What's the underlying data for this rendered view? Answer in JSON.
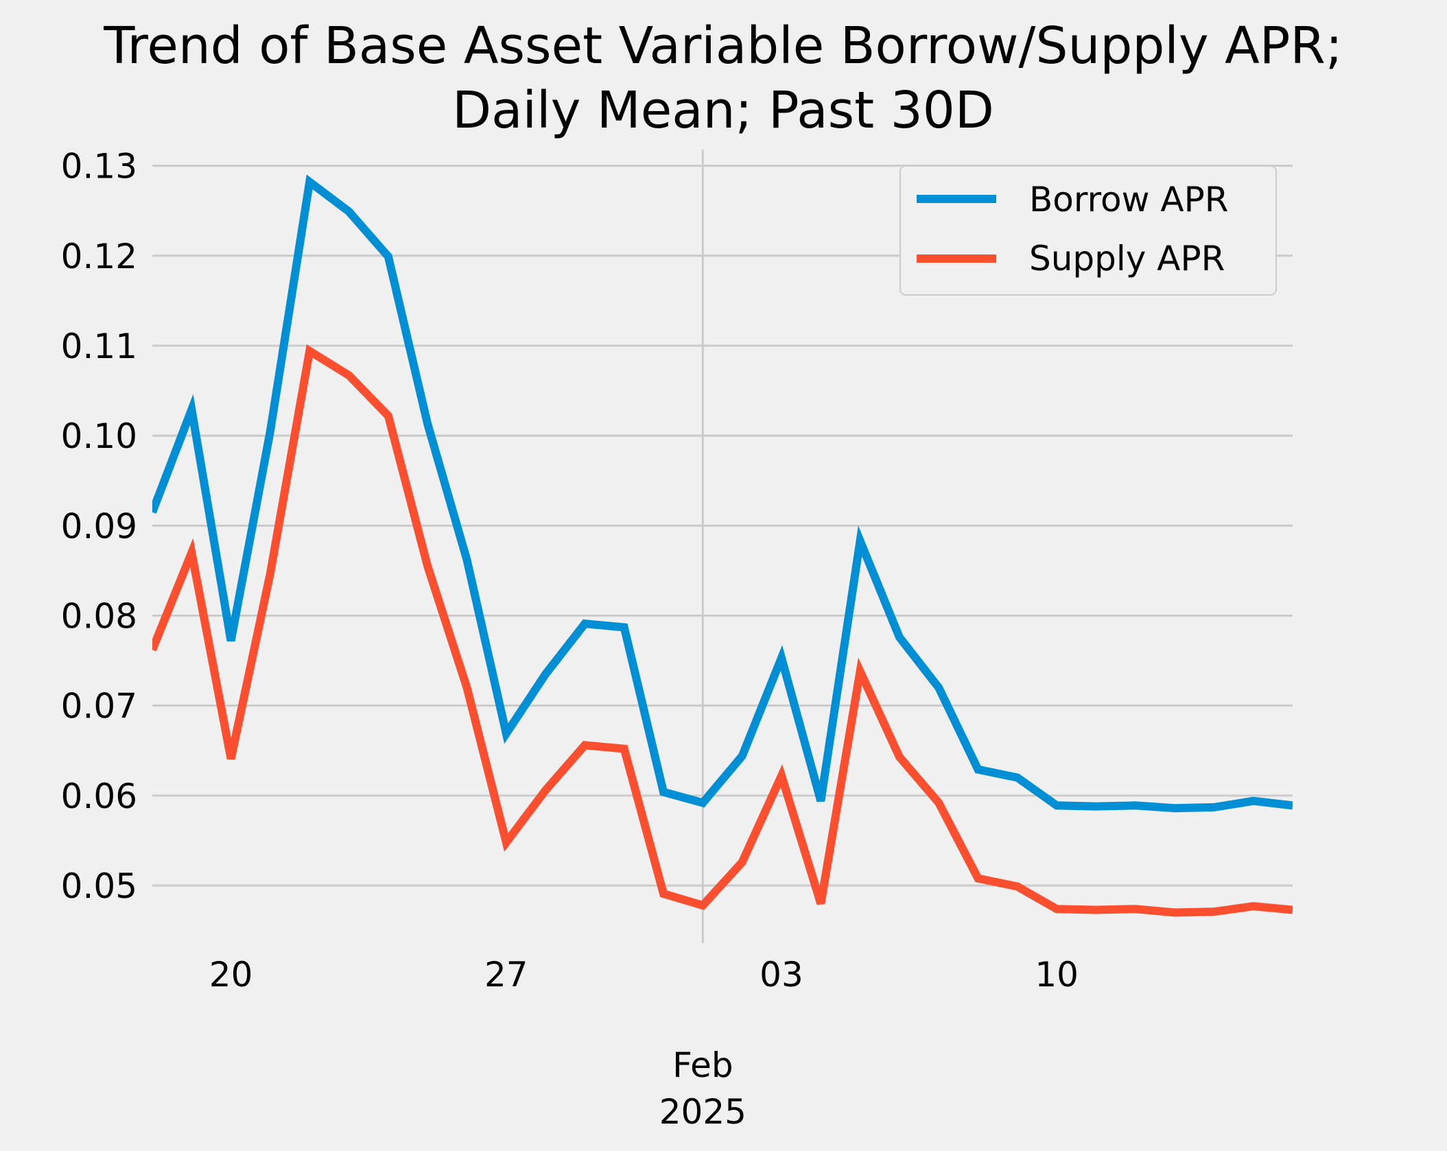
{
  "chart_data": {
    "type": "line",
    "title": [
      "Trend of Base Asset Variable Borrow/Supply APR;",
      "Daily Mean; Past 30D"
    ],
    "xlabel": "",
    "ylabel": "",
    "x": [
      "2025-01-18",
      "2025-01-19",
      "2025-01-20",
      "2025-01-21",
      "2025-01-22",
      "2025-01-23",
      "2025-01-24",
      "2025-01-25",
      "2025-01-26",
      "2025-01-27",
      "2025-01-28",
      "2025-01-29",
      "2025-01-30",
      "2025-01-31",
      "2025-02-01",
      "2025-02-02",
      "2025-02-03",
      "2025-02-04",
      "2025-02-05",
      "2025-02-06",
      "2025-02-07",
      "2025-02-08",
      "2025-02-09",
      "2025-02-10",
      "2025-02-11",
      "2025-02-12",
      "2025-02-13",
      "2025-02-14",
      "2025-02-15",
      "2025-02-16"
    ],
    "xlim": [
      "2025-01-18",
      "2025-02-16"
    ],
    "ylim": [
      0.0436,
      0.1318
    ],
    "x_ticks": [
      {
        "date": "2025-01-20",
        "label": "20"
      },
      {
        "date": "2025-01-27",
        "label": "27"
      },
      {
        "date": "2025-02-03",
        "label": "03"
      },
      {
        "date": "2025-02-10",
        "label": "10"
      }
    ],
    "x_month_label": {
      "date": "2025-02-01",
      "line1": "Feb",
      "line2": "2025"
    },
    "y_ticks": [
      "0.05",
      "0.06",
      "0.07",
      "0.08",
      "0.09",
      "0.10",
      "0.11",
      "0.12",
      "0.13"
    ],
    "grid": true,
    "legend_position": "top-right",
    "series": [
      {
        "name": "Borrow APR",
        "color": "#008fd5",
        "values": [
          0.0915,
          0.1029,
          0.0772,
          0.1005,
          0.1282,
          0.1249,
          0.1199,
          0.1013,
          0.0862,
          0.0669,
          0.0735,
          0.0791,
          0.0787,
          0.0604,
          0.0592,
          0.0644,
          0.0753,
          0.0594,
          0.0883,
          0.0776,
          0.072,
          0.0629,
          0.062,
          0.0589,
          0.0588,
          0.0589,
          0.0586,
          0.0587,
          0.0594,
          0.0589
        ]
      },
      {
        "name": "Supply APR",
        "color": "#fc4f30",
        "values": [
          0.0762,
          0.087,
          0.0641,
          0.0847,
          0.1094,
          0.1067,
          0.1022,
          0.0855,
          0.072,
          0.0548,
          0.0606,
          0.0656,
          0.0652,
          0.0491,
          0.0478,
          0.0526,
          0.0622,
          0.048,
          0.0738,
          0.0643,
          0.0592,
          0.0508,
          0.0499,
          0.0474,
          0.0473,
          0.0474,
          0.047,
          0.0471,
          0.0477,
          0.0473
        ]
      }
    ]
  }
}
